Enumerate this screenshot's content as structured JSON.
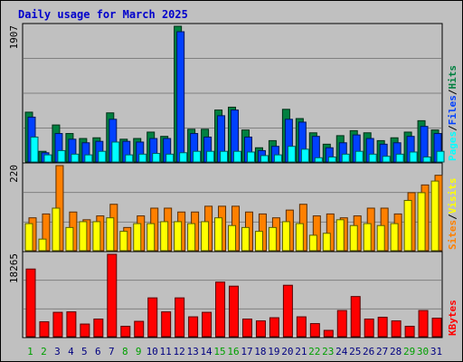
{
  "title": "Daily usage for March 2025",
  "chart_data": [
    {
      "type": "bar",
      "panel": "pages-files-hits",
      "ymax_label": "1907",
      "ylim": [
        0,
        1907
      ],
      "legend": [
        "Pages",
        "/",
        "Files",
        "/",
        "Hits"
      ],
      "categories": [
        "1",
        "2",
        "3",
        "4",
        "5",
        "6",
        "7",
        "8",
        "9",
        "10",
        "11",
        "12",
        "13",
        "14",
        "15",
        "16",
        "17",
        "18",
        "19",
        "20",
        "21",
        "22",
        "23",
        "24",
        "25",
        "26",
        "27",
        "28",
        "29",
        "30",
        "31"
      ],
      "series": [
        {
          "name": "Hits",
          "color": "#008040",
          "values": [
            700,
            150,
            520,
            400,
            330,
            340,
            690,
            320,
            330,
            420,
            360,
            1907,
            460,
            460,
            730,
            770,
            450,
            200,
            300,
            740,
            610,
            410,
            250,
            370,
            440,
            410,
            300,
            340,
            420,
            580,
            450
          ]
        },
        {
          "name": "Files",
          "color": "#0040ff",
          "values": [
            630,
            130,
            400,
            320,
            270,
            290,
            600,
            290,
            280,
            330,
            330,
            1830,
            400,
            350,
            650,
            730,
            350,
            160,
            220,
            600,
            560,
            360,
            200,
            270,
            380,
            330,
            250,
            270,
            360,
            500,
            400
          ]
        },
        {
          "name": "Pages",
          "color": "#00ffff",
          "values": [
            350,
            100,
            160,
            110,
            100,
            150,
            280,
            100,
            110,
            120,
            110,
            130,
            150,
            150,
            150,
            150,
            140,
            90,
            100,
            220,
            180,
            60,
            70,
            110,
            150,
            110,
            80,
            110,
            140,
            70,
            150
          ]
        }
      ]
    },
    {
      "type": "bar",
      "panel": "visits-sites",
      "ymax_label": "220",
      "ylim": [
        0,
        220
      ],
      "legend": [
        "Sites",
        "/",
        "Visits"
      ],
      "categories": [
        "1",
        "2",
        "3",
        "4",
        "5",
        "6",
        "7",
        "8",
        "9",
        "10",
        "11",
        "12",
        "13",
        "14",
        "15",
        "16",
        "17",
        "18",
        "19",
        "20",
        "21",
        "22",
        "23",
        "24",
        "25",
        "26",
        "27",
        "28",
        "29",
        "30",
        "31"
      ],
      "series": [
        {
          "name": "Visits",
          "color": "#ff8000",
          "values": [
            85,
            95,
            220,
            100,
            80,
            90,
            120,
            60,
            90,
            110,
            110,
            100,
            100,
            115,
            115,
            115,
            100,
            95,
            85,
            105,
            120,
            90,
            95,
            85,
            90,
            110,
            110,
            95,
            150,
            170,
            195
          ]
        },
        {
          "name": "Sites",
          "color": "#ffff00",
          "values": [
            70,
            30,
            110,
            60,
            75,
            75,
            85,
            50,
            70,
            70,
            75,
            75,
            70,
            75,
            85,
            65,
            60,
            50,
            60,
            75,
            70,
            40,
            45,
            80,
            65,
            70,
            65,
            70,
            130,
            150,
            180
          ]
        }
      ]
    },
    {
      "type": "bar",
      "panel": "kbytes",
      "ymax_label": "18265",
      "ylim": [
        0,
        18265
      ],
      "legend": [
        "KBytes"
      ],
      "categories": [
        "1",
        "2",
        "3",
        "4",
        "5",
        "6",
        "7",
        "8",
        "9",
        "10",
        "11",
        "12",
        "13",
        "14",
        "15",
        "16",
        "17",
        "18",
        "19",
        "20",
        "21",
        "22",
        "23",
        "24",
        "25",
        "26",
        "27",
        "28",
        "29",
        "30",
        "31"
      ],
      "series": [
        {
          "name": "KBytes",
          "color": "#ff0000",
          "values": [
            15000,
            3300,
            5400,
            5500,
            2800,
            3900,
            18265,
            2300,
            3400,
            8600,
            5500,
            8600,
            4400,
            5400,
            12100,
            11200,
            3900,
            3500,
            4200,
            11400,
            4400,
            2900,
            1400,
            5800,
            8900,
            3900,
            4300,
            3500,
            2300,
            5800,
            4100
          ]
        }
      ]
    }
  ],
  "colors": {
    "background": "#c0c0c0",
    "plot_bg": "#c0c0c0",
    "hits": "#008040",
    "files": "#0040ff",
    "pages": "#00ffff",
    "visits": "#ff8000",
    "sites": "#ffff00",
    "kbytes": "#ff0000",
    "weekday_label": "#000080",
    "weekend_label": "#00a000",
    "title": "#0000cc"
  },
  "weekend_days": [
    "1",
    "2",
    "8",
    "9",
    "15",
    "16",
    "22",
    "23",
    "29",
    "30"
  ]
}
